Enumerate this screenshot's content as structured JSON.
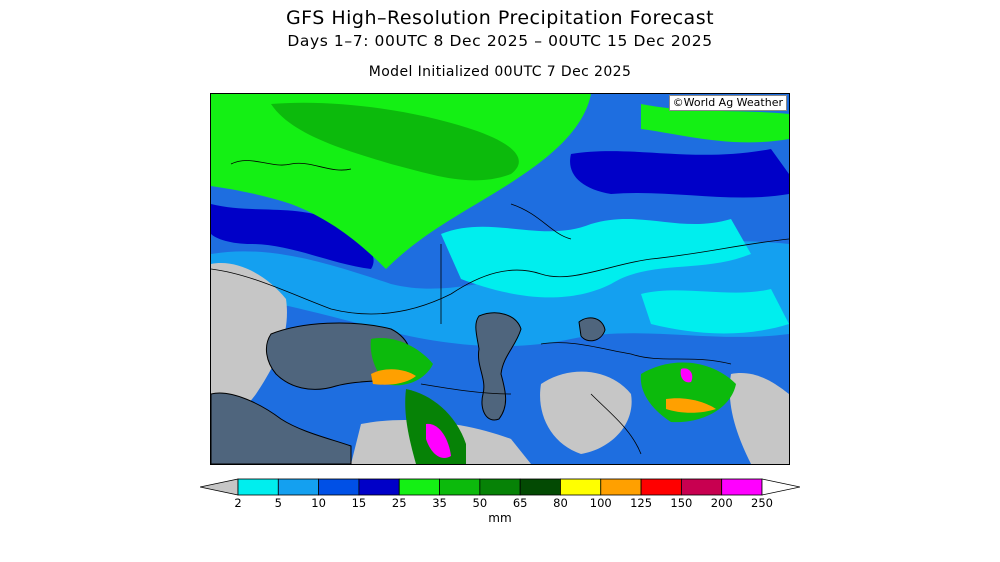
{
  "header": {
    "title": "GFS High–Resolution Precipitation Forecast",
    "subtitle": "Days 1–7: 00UTC 8 Dec 2025 – 00UTC 15 Dec 2025",
    "init": "Model Initialized 00UTC 7 Dec 2025"
  },
  "map": {
    "credit": "©World Ag Weather",
    "water_color": "#4f657d",
    "land_dry_color": "#c6c6c6"
  },
  "legend": {
    "units": "mm",
    "bins": [
      {
        "label": "2",
        "color": "#00eeee"
      },
      {
        "label": "5",
        "color": "#14a0f0"
      },
      {
        "label": "10",
        "color": "#0050e6"
      },
      {
        "label": "15",
        "color": "#0000c8"
      },
      {
        "label": "25",
        "color": "#14f014"
      },
      {
        "label": "35",
        "color": "#0cba0c"
      },
      {
        "label": "50",
        "color": "#068206"
      },
      {
        "label": "65",
        "color": "#034a03"
      },
      {
        "label": "80",
        "color": "#ffff00"
      },
      {
        "label": "100",
        "color": "#ffa000"
      },
      {
        "label": "125",
        "color": "#ff0000"
      },
      {
        "label": "150",
        "color": "#c80050"
      },
      {
        "label": "200",
        "color": "#ff00ff"
      },
      {
        "label": "250",
        "color": "#9b50dc"
      }
    ]
  }
}
